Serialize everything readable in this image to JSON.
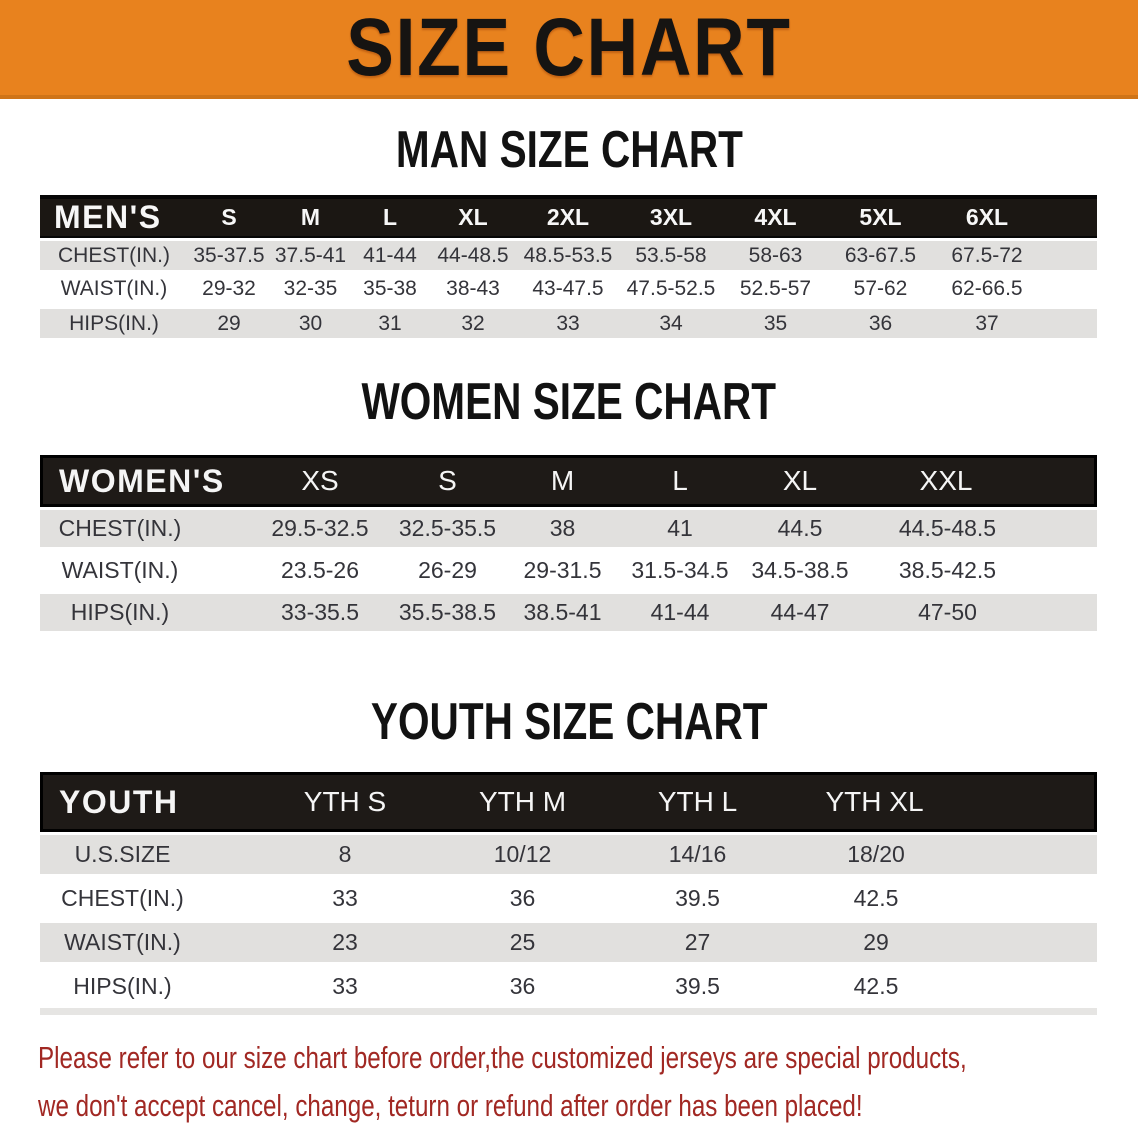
{
  "banner": {
    "title": "SIZE CHART",
    "background": "#E8821E",
    "title_color": "#161412"
  },
  "sections": [
    {
      "id": "men",
      "heading": "MAN SIZE CHART",
      "table": {
        "label": "MEN'S",
        "columns": [
          "S",
          "M",
          "L",
          "XL",
          "2XL",
          "3XL",
          "4XL",
          "5XL",
          "6XL"
        ],
        "rows": [
          {
            "label": "CHEST(IN.)",
            "values": [
              "35-37.5",
              "37.5-41",
              "41-44",
              "44-48.5",
              "48.5-53.5",
              "53.5-58",
              "58-63",
              "63-67.5",
              "67.5-72"
            ]
          },
          {
            "label": "WAIST(IN.)",
            "values": [
              "29-32",
              "32-35",
              "35-38",
              "38-43",
              "43-47.5",
              "47.5-52.5",
              "52.5-57",
              "57-62",
              "62-66.5"
            ]
          },
          {
            "label": "HIPS(IN.)",
            "values": [
              "29",
              "30",
              "31",
              "32",
              "33",
              "34",
              "35",
              "36",
              "37"
            ]
          }
        ]
      }
    },
    {
      "id": "women",
      "heading": "WOMEN SIZE CHART",
      "table": {
        "label": "WOMEN'S",
        "columns": [
          "XS",
          "S",
          "M",
          "L",
          "XL",
          "XXL"
        ],
        "rows": [
          {
            "label": "CHEST(IN.)",
            "values": [
              "29.5-32.5",
              "32.5-35.5",
              "38",
              "41",
              "44.5",
              "44.5-48.5"
            ]
          },
          {
            "label": "WAIST(IN.)",
            "values": [
              "23.5-26",
              "26-29",
              "29-31.5",
              "31.5-34.5",
              "34.5-38.5",
              "38.5-42.5"
            ]
          },
          {
            "label": "HIPS(IN.)",
            "values": [
              "33-35.5",
              "35.5-38.5",
              "38.5-41",
              "41-44",
              "44-47",
              "47-50"
            ]
          }
        ]
      }
    },
    {
      "id": "youth",
      "heading": "YOUTH SIZE CHART",
      "table": {
        "label": "YOUTH",
        "columns": [
          "YTH S",
          "YTH M",
          "YTH L",
          "YTH XL"
        ],
        "rows": [
          {
            "label": "U.S.SIZE",
            "values": [
              "8",
              "10/12",
              "14/16",
              "18/20"
            ]
          },
          {
            "label": "CHEST(IN.)",
            "values": [
              "33",
              "36",
              "39.5",
              "42.5"
            ]
          },
          {
            "label": "WAIST(IN.)",
            "values": [
              "23",
              "25",
              "27",
              "29"
            ]
          },
          {
            "label": "HIPS(IN.)",
            "values": [
              "33",
              "36",
              "39.5",
              "42.5"
            ]
          }
        ]
      }
    }
  ],
  "footer": {
    "line1": "Please refer to our size chart before order,the customized jerseys are special products,",
    "line2": "we don't accept cancel, change, teturn or refund after order has been placed!",
    "text_color": "#A12823"
  },
  "colors": {
    "banner_orange": "#E8821E",
    "banner_edge": "#CF7418",
    "header_bar_dark": "#1B1713",
    "row_shade_gray": "#E1E0DE",
    "body_text": "#34343A",
    "notice_red": "#A12823"
  }
}
